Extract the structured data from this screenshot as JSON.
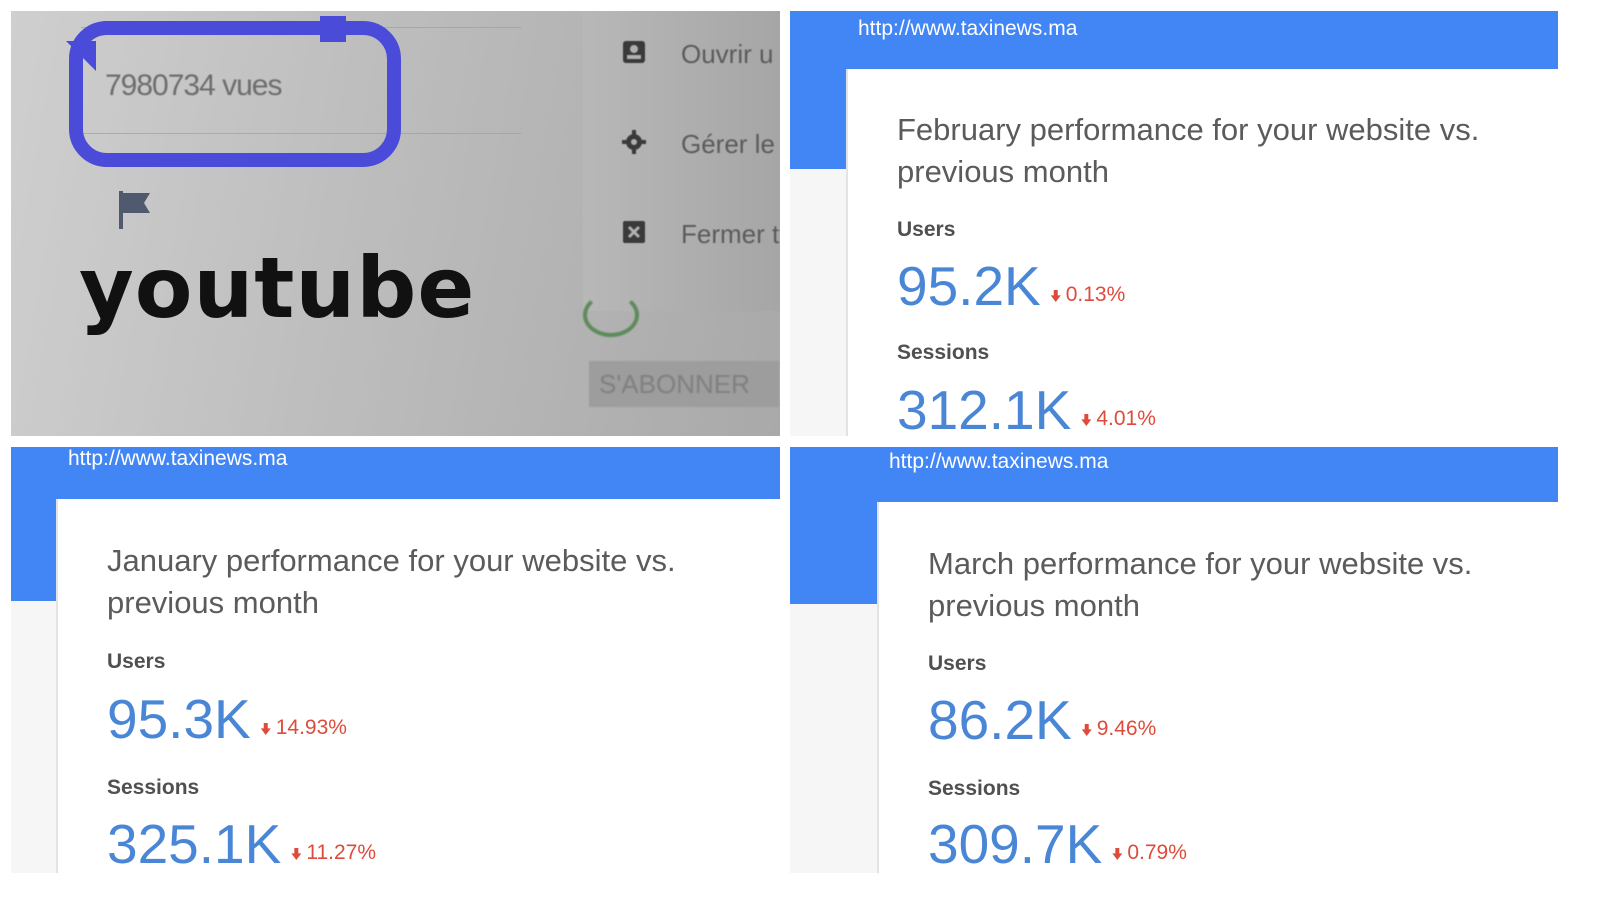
{
  "photo": {
    "views_text": "7980734 vues",
    "label": "youtube",
    "menu_items": [
      {
        "icon": "person-badge-icon",
        "label": "Ouvrir u"
      },
      {
        "icon": "gear-icon",
        "label": "Gérer le"
      },
      {
        "icon": "close-box-icon",
        "label": "Fermer t"
      }
    ],
    "subscribe_label": "S'ABONNER",
    "highlight_color": "#4b4bd9"
  },
  "cards": {
    "february": {
      "url": "http://www.taxinews.ma",
      "title": "February performance for your website vs. previous month",
      "users_label": "Users",
      "users_value": "95.2K",
      "users_delta": "0.13%",
      "sessions_label": "Sessions",
      "sessions_value": "312.1K",
      "sessions_delta": "4.01%"
    },
    "january": {
      "url": "http://www.taxinews.ma",
      "title": "January performance for your website vs. previous month",
      "users_label": "Users",
      "users_value": "95.3K",
      "users_delta": "14.93%",
      "sessions_label": "Sessions",
      "sessions_value": "325.1K",
      "sessions_delta": "11.27%"
    },
    "march": {
      "url": "http://www.taxinews.ma",
      "title": "March performance for your website vs. previous month",
      "users_label": "Users",
      "users_value": "86.2K",
      "users_delta": "9.46%",
      "sessions_label": "Sessions",
      "sessions_value": "309.7K",
      "sessions_delta": "0.79%"
    }
  },
  "colors": {
    "header_blue": "#4285f4",
    "metric_blue": "#4a86d6",
    "decrease_red": "#de4b3b"
  }
}
